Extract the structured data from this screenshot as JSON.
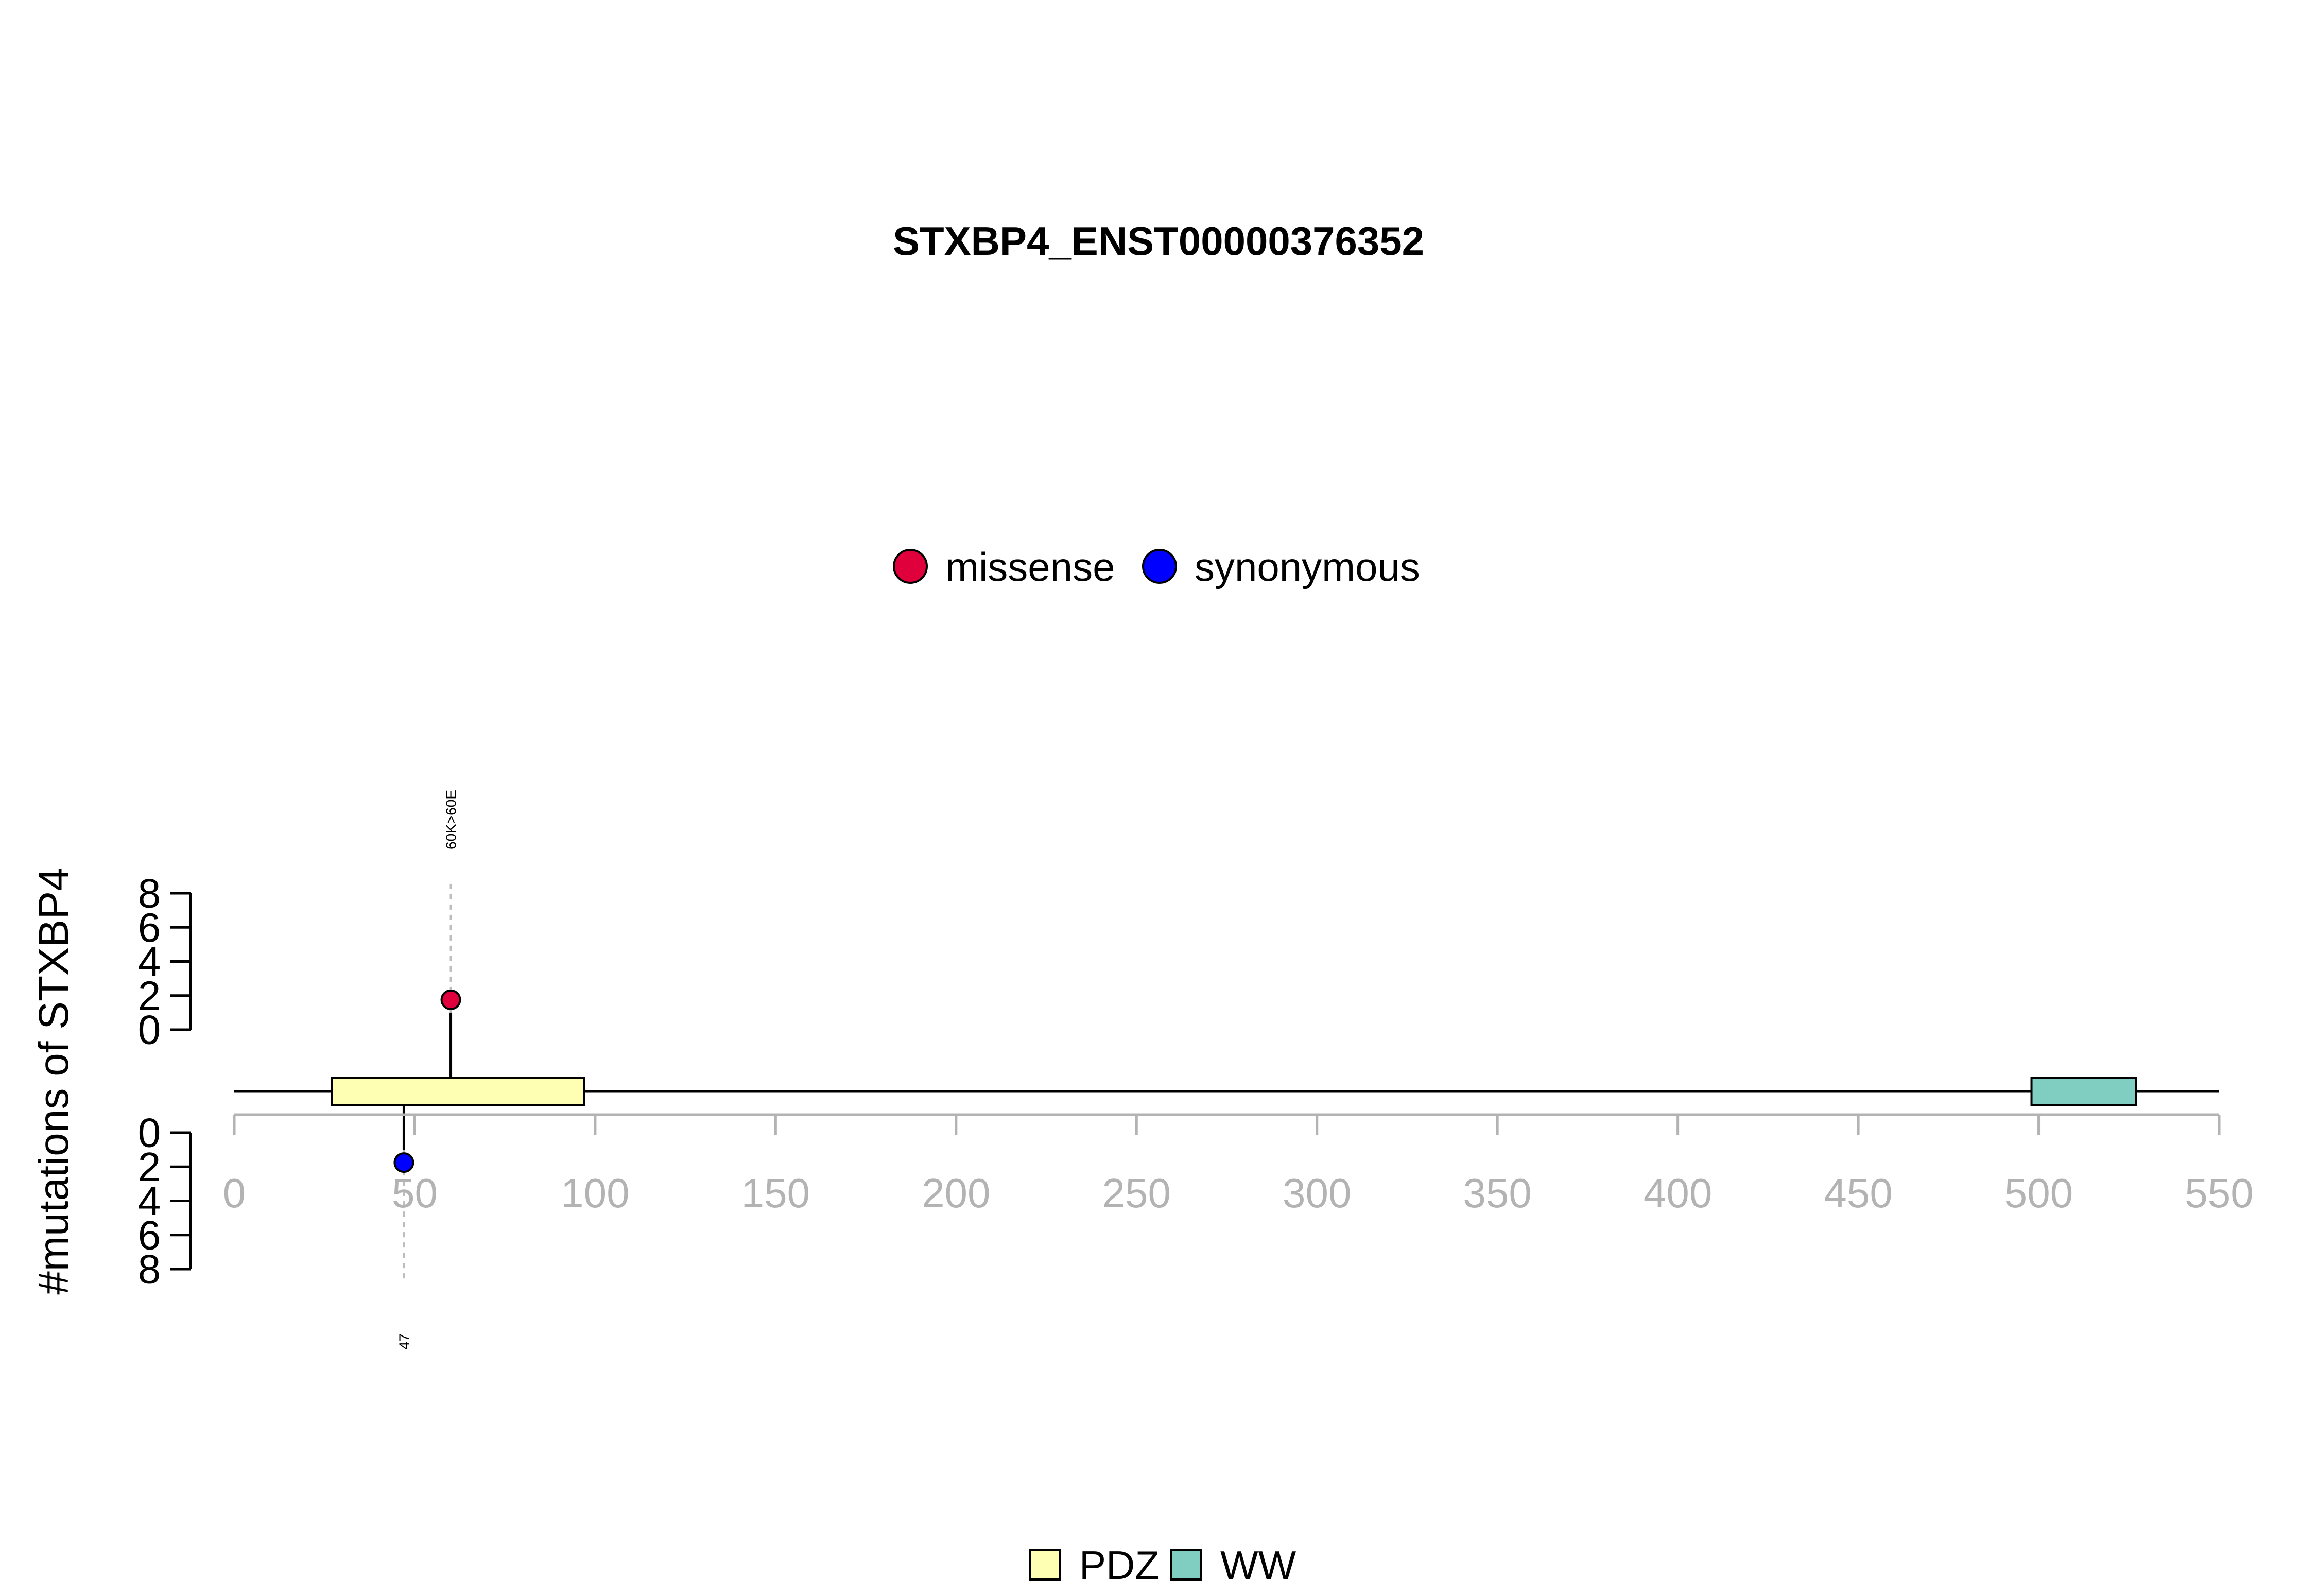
{
  "chart_data": {
    "type": "lollipop",
    "title": "STXBP4_ENST00000376352",
    "ylabel": "#mutations of STXBP4",
    "xlim": [
      0,
      550
    ],
    "x_ticks": [
      0,
      50,
      100,
      150,
      200,
      250,
      300,
      350,
      400,
      450,
      500,
      550
    ],
    "y_ticks": [
      0,
      2,
      4,
      6,
      8
    ],
    "ylim": [
      0,
      8
    ],
    "mutation_legend": [
      {
        "label": "missense",
        "color": "#e0003c"
      },
      {
        "label": "synonymous",
        "color": "#0000ff"
      }
    ],
    "domain_legend": [
      {
        "label": "PDZ",
        "color": "#ffffb3"
      },
      {
        "label": "WW",
        "color": "#80cdc1"
      }
    ],
    "domains": [
      {
        "name": "PDZ",
        "start": 27,
        "end": 97,
        "color": "#ffffb3"
      },
      {
        "name": "WW",
        "start": 498,
        "end": 527,
        "color": "#80cdc1"
      }
    ],
    "mutations": [
      {
        "position": 60,
        "count": 1,
        "type": "missense",
        "label": "60K>60E",
        "side": "top"
      },
      {
        "position": 47,
        "count": 1,
        "type": "synonymous",
        "label": "47",
        "side": "bottom"
      }
    ]
  }
}
